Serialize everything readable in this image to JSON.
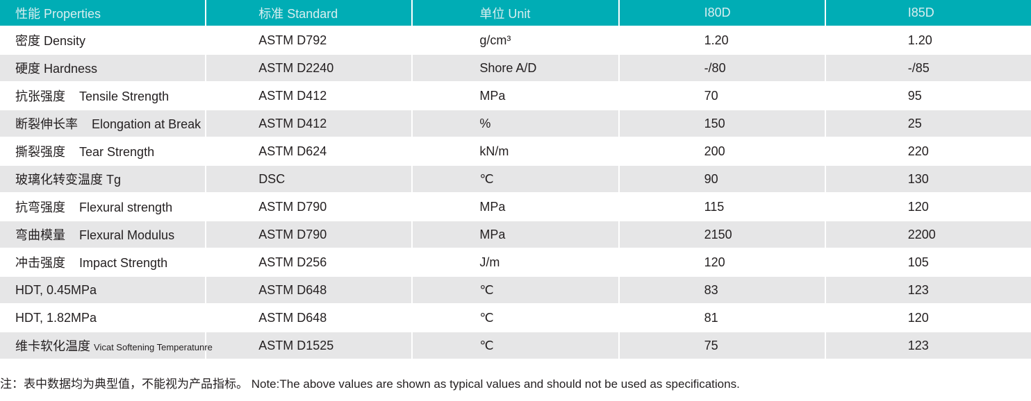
{
  "table": {
    "headers": [
      "性能 Properties",
      "标准 Standard",
      "单位 Unit",
      "I80D",
      "I85D"
    ],
    "rows": [
      {
        "cn": "密度",
        "en": "Density",
        "standard": "ASTM D792",
        "unit": "g/cm³",
        "i80d": "1.20",
        "i85d": "1.20"
      },
      {
        "cn": "硬度",
        "en": "Hardness",
        "standard": "ASTM D2240",
        "unit": "Shore A/D",
        "i80d": "-/80",
        "i85d": "-/85"
      },
      {
        "cn": "抗张强度",
        "en": "Tensile Strength",
        "standard": "ASTM D412",
        "unit": "MPa",
        "i80d": "70",
        "i85d": "95"
      },
      {
        "cn": "断裂伸长率",
        "en": "Elongation at Break",
        "standard": "ASTM D412",
        "unit": "%",
        "i80d": "150",
        "i85d": "25"
      },
      {
        "cn": "撕裂强度",
        "en": "Tear Strength",
        "standard": "ASTM D624",
        "unit": "kN/m",
        "i80d": "200",
        "i85d": "220"
      },
      {
        "cn": "玻璃化转变温度",
        "en": "Tg",
        "standard": "DSC",
        "unit": "℃",
        "i80d": "90",
        "i85d": "130"
      },
      {
        "cn": "抗弯强度",
        "en": "Flexural strength",
        "standard": "ASTM D790",
        "unit": "MPa",
        "i80d": "115",
        "i85d": "120"
      },
      {
        "cn": "弯曲模量",
        "en": "Flexural Modulus",
        "standard": "ASTM D790",
        "unit": "MPa",
        "i80d": "2150",
        "i85d": "2200"
      },
      {
        "cn": "冲击强度",
        "en": "Impact  Strength",
        "standard": "ASTM D256",
        "unit": "J/m",
        "i80d": "120",
        "i85d": "105"
      },
      {
        "cn": "",
        "en": "HDT, 0.45MPa",
        "standard": "ASTM D648",
        "unit": "℃",
        "i80d": "83",
        "i85d": "123"
      },
      {
        "cn": "",
        "en": "HDT, 1.82MPa",
        "standard": "ASTM D648",
        "unit": "℃",
        "i80d": "81",
        "i85d": "120"
      },
      {
        "cn": "维卡软化温度",
        "en": "Vicat Softening Temperatunre",
        "standard": "ASTM D1525",
        "unit": "℃",
        "i80d": "75",
        "i85d": "123"
      }
    ]
  },
  "note": "注：表中数据均为典型值，不能视为产品指标。 Note:The above values are shown as typical values and should not be used as specifications.",
  "colors": {
    "header_bg": "#00adb5",
    "stripe": "#e6e6e7"
  }
}
